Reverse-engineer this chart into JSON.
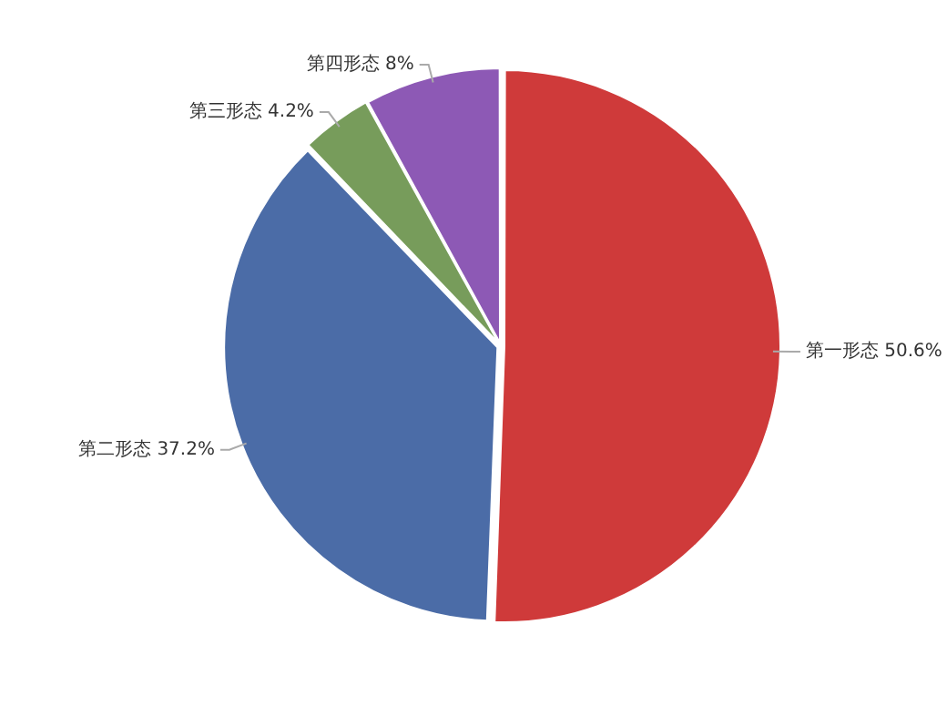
{
  "chart_data": {
    "type": "pie",
    "categories": [
      "第一形态",
      "第二形态",
      "第三形态",
      "第四形态"
    ],
    "values": [
      50.6,
      37.2,
      4.2,
      8
    ],
    "value_labels": [
      "50.6%",
      "37.2%",
      "4.2%",
      "8%"
    ],
    "colors": [
      "#cf3a3a",
      "#4b6ca7",
      "#779c5b",
      "#8d59b5"
    ]
  }
}
